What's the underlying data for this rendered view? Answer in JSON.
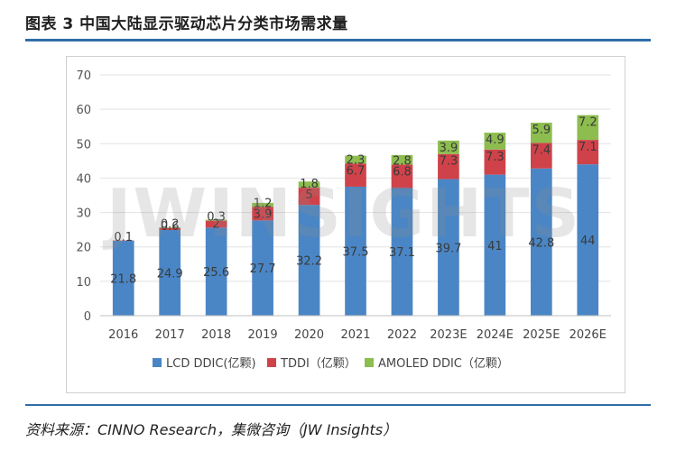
{
  "figure_title": "图表 3   中国大陆显示驱动芯片分类市场需求量",
  "watermark": "JWINSIGHTS",
  "source": "资料来源：CINNO Research，集微咨询（JW Insights）",
  "chart_data": {
    "type": "bar",
    "stacked": true,
    "categories": [
      "2016",
      "2017",
      "2018",
      "2019",
      "2020",
      "2021",
      "2022",
      "2023E",
      "2024E",
      "2025E",
      "2026E"
    ],
    "series": [
      {
        "name": "LCD DDIC(亿颗)",
        "color": "#4a86c5",
        "values": [
          21.8,
          24.9,
          25.6,
          27.7,
          32.2,
          37.5,
          37.1,
          39.7,
          41,
          42.8,
          44
        ]
      },
      {
        "name": "TDDI（亿颗）",
        "color": "#d0424a",
        "values": [
          0.1,
          0.6,
          2,
          3.9,
          5,
          6.7,
          6.8,
          7.3,
          7.3,
          7.4,
          7.1
        ]
      },
      {
        "name": "AMOLED DDIC（亿颗）",
        "color": "#8dbd4f",
        "values": [
          0,
          0.2,
          0.3,
          1.2,
          1.8,
          2.3,
          2.8,
          3.9,
          4.9,
          5.9,
          7.2
        ]
      }
    ],
    "labels": [
      [
        "21.8",
        "24.9",
        "25.6",
        "27.7",
        "32.2",
        "37.5",
        "37.1",
        "39.7",
        "41",
        "42.8",
        "44"
      ],
      [
        "0.1",
        "0.6",
        "2",
        "3.9",
        "5",
        "6.7",
        "6.8",
        "7.3",
        "7.3",
        "7.4",
        "7.1"
      ],
      [
        "",
        "0.2",
        "0.3",
        "1.2",
        "1.8",
        "2.3",
        "2.8",
        "3.9",
        "4.9",
        "5.9",
        "7.2"
      ]
    ],
    "ylim": [
      0,
      70
    ],
    "yticks": [
      "0",
      "10",
      "20",
      "30",
      "40",
      "50",
      "60",
      "70"
    ],
    "grid": true,
    "legend_position": "bottom"
  }
}
